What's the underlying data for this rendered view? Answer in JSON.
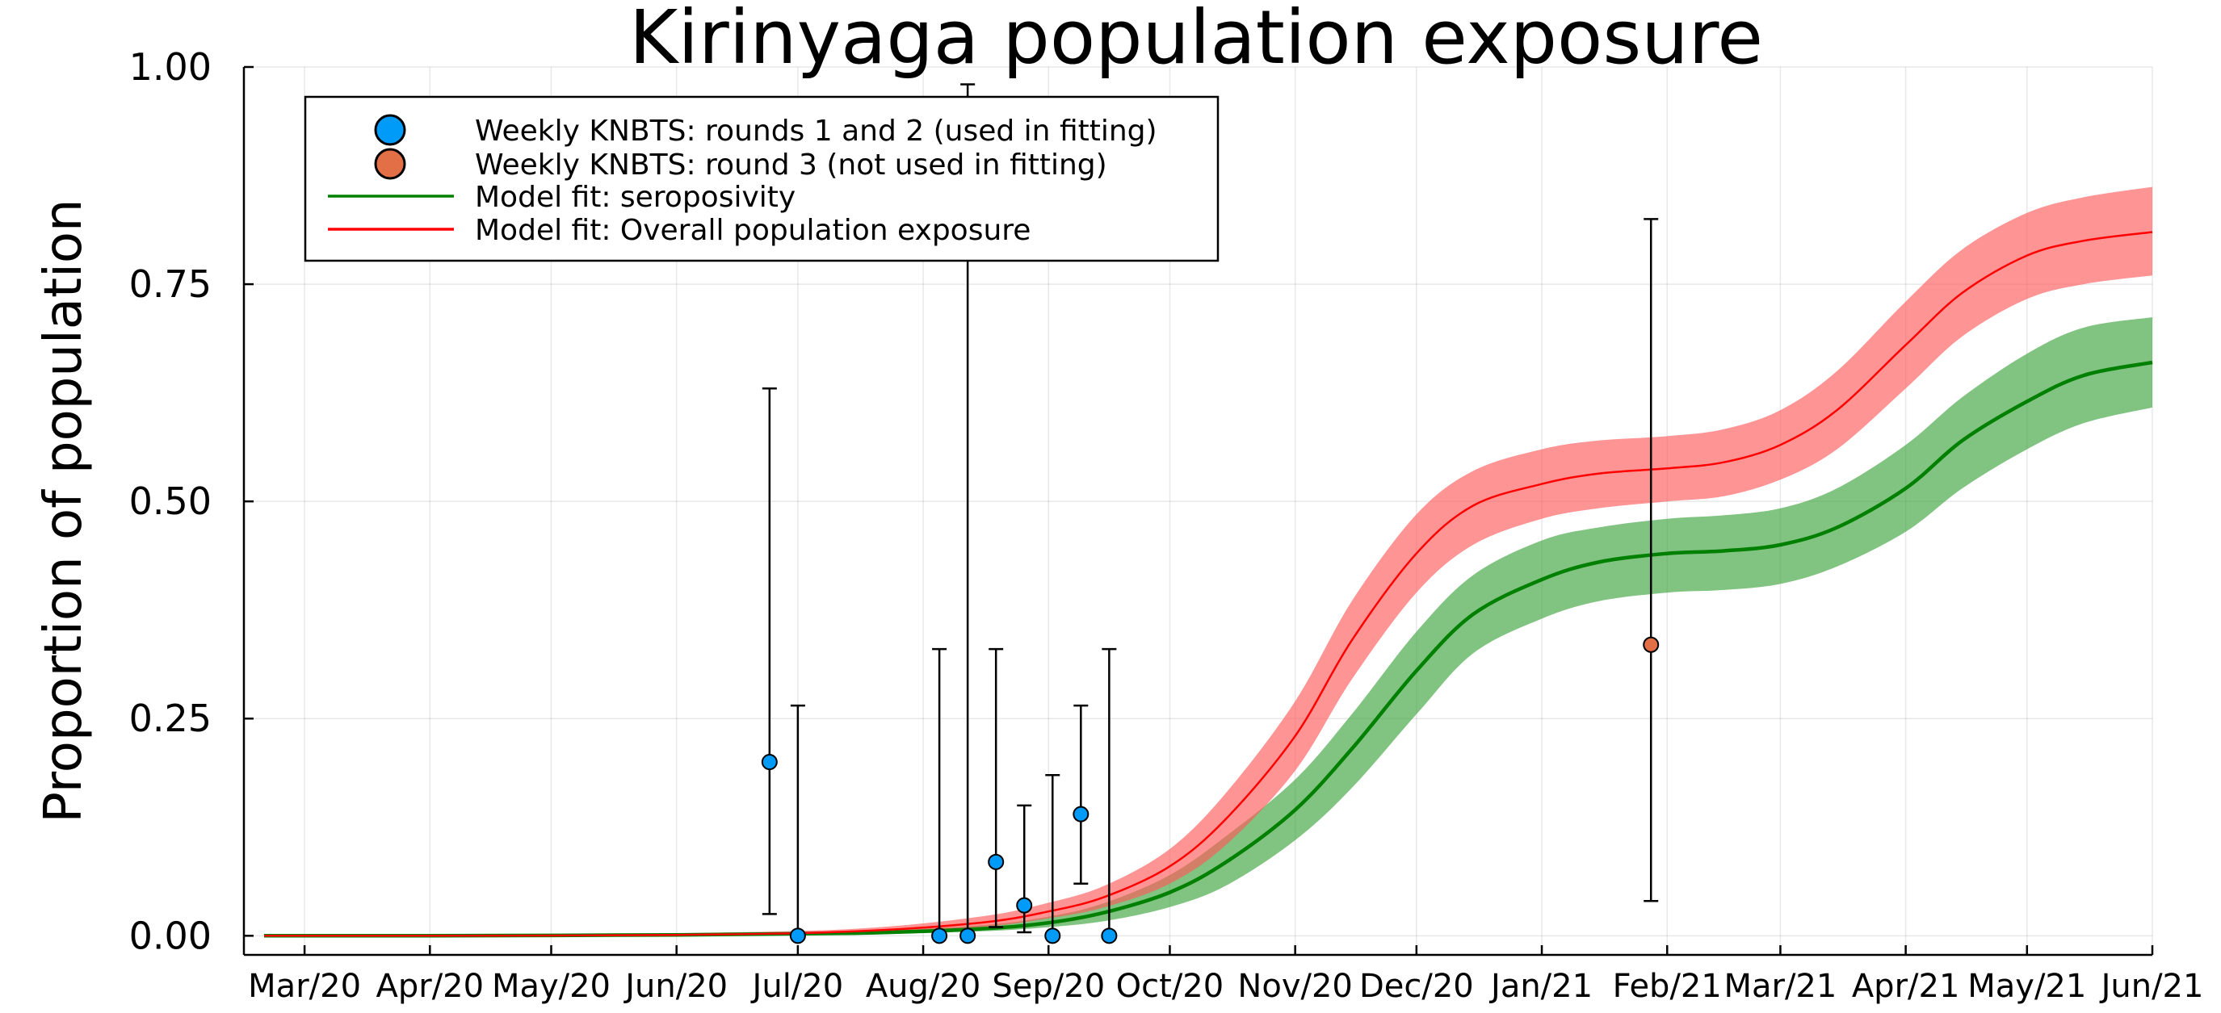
{
  "chart_data": {
    "type": "line",
    "title": "Kirinyaga population exposure",
    "xlabel": "",
    "ylabel": "Proportion of population",
    "x_is_date": true,
    "xlim": [
      "2020-02-15",
      "2021-06-01"
    ],
    "ylim": [
      -0.022,
      1.0
    ],
    "grid": true,
    "legend_position": "top-left",
    "xticks": [
      {
        "date": "2020-03-01",
        "label": "Mar/20"
      },
      {
        "date": "2020-04-01",
        "label": "Apr/20"
      },
      {
        "date": "2020-05-01",
        "label": "May/20"
      },
      {
        "date": "2020-06-01",
        "label": "Jun/20"
      },
      {
        "date": "2020-07-01",
        "label": "Jul/20"
      },
      {
        "date": "2020-08-01",
        "label": "Aug/20"
      },
      {
        "date": "2020-09-01",
        "label": "Sep/20"
      },
      {
        "date": "2020-10-01",
        "label": "Oct/20"
      },
      {
        "date": "2020-11-01",
        "label": "Nov/20"
      },
      {
        "date": "2020-12-01",
        "label": "Dec/20"
      },
      {
        "date": "2021-01-01",
        "label": "Jan/21"
      },
      {
        "date": "2021-02-01",
        "label": "Feb/21"
      },
      {
        "date": "2021-03-01",
        "label": "Mar/21"
      },
      {
        "date": "2021-04-01",
        "label": "Apr/21"
      },
      {
        "date": "2021-05-01",
        "label": "May/21"
      },
      {
        "date": "2021-06-01",
        "label": "Jun/21"
      }
    ],
    "yticks": [
      {
        "value": 0.0,
        "label": "0.00"
      },
      {
        "value": 0.25,
        "label": "0.25"
      },
      {
        "value": 0.5,
        "label": "0.50"
      },
      {
        "value": 0.75,
        "label": "0.75"
      },
      {
        "value": 1.0,
        "label": "1.00"
      }
    ],
    "series": [
      {
        "name": "Weekly KNBTS: rounds 1 and 2 (used in fitting)",
        "kind": "scatter_errorbar",
        "color": "#009af9",
        "points": [
          {
            "x": "2020-06-24",
            "y": 0.2,
            "lo": 0.025,
            "hi": 0.63
          },
          {
            "x": "2020-07-01",
            "y": 0.0,
            "lo": 0.0,
            "hi": 0.265
          },
          {
            "x": "2020-08-05",
            "y": 0.0,
            "lo": 0.0,
            "hi": 0.33
          },
          {
            "x": "2020-08-12",
            "y": 0.0,
            "lo": 0.0,
            "hi": 0.98
          },
          {
            "x": "2020-08-19",
            "y": 0.085,
            "lo": 0.01,
            "hi": 0.33
          },
          {
            "x": "2020-08-26",
            "y": 0.035,
            "lo": 0.004,
            "hi": 0.15
          },
          {
            "x": "2020-09-02",
            "y": 0.0,
            "lo": 0.0,
            "hi": 0.185
          },
          {
            "x": "2020-09-09",
            "y": 0.14,
            "lo": 0.06,
            "hi": 0.265
          },
          {
            "x": "2020-09-16",
            "y": 0.0,
            "lo": 0.0,
            "hi": 0.33
          }
        ]
      },
      {
        "name": "Weekly KNBTS: round 3 (not used in fitting)",
        "kind": "scatter_errorbar",
        "color": "#e26f46",
        "points": [
          {
            "x": "2021-01-28",
            "y": 0.335,
            "lo": 0.04,
            "hi": 0.825
          }
        ]
      },
      {
        "name": "Model fit: seroposivity",
        "kind": "line_band",
        "color": "#008000",
        "band_color": "#3da33d",
        "points": [
          {
            "x": "2020-02-20",
            "y": 0.0,
            "lo": 0.0,
            "hi": 0.0
          },
          {
            "x": "2020-04-01",
            "y": 0.0,
            "lo": 0.0,
            "hi": 0.0
          },
          {
            "x": "2020-06-01",
            "y": 0.001,
            "lo": 0.0,
            "hi": 0.002
          },
          {
            "x": "2020-07-15",
            "y": 0.003,
            "lo": 0.002,
            "hi": 0.005
          },
          {
            "x": "2020-08-15",
            "y": 0.008,
            "lo": 0.005,
            "hi": 0.012
          },
          {
            "x": "2020-09-01",
            "y": 0.015,
            "lo": 0.01,
            "hi": 0.022
          },
          {
            "x": "2020-09-15",
            "y": 0.027,
            "lo": 0.017,
            "hi": 0.038
          },
          {
            "x": "2020-10-01",
            "y": 0.05,
            "lo": 0.033,
            "hi": 0.07
          },
          {
            "x": "2020-10-15",
            "y": 0.085,
            "lo": 0.058,
            "hi": 0.115
          },
          {
            "x": "2020-11-01",
            "y": 0.145,
            "lo": 0.11,
            "hi": 0.18
          },
          {
            "x": "2020-11-15",
            "y": 0.215,
            "lo": 0.17,
            "hi": 0.255
          },
          {
            "x": "2020-12-01",
            "y": 0.305,
            "lo": 0.255,
            "hi": 0.35
          },
          {
            "x": "2020-12-15",
            "y": 0.37,
            "lo": 0.325,
            "hi": 0.415
          },
          {
            "x": "2021-01-01",
            "y": 0.41,
            "lo": 0.365,
            "hi": 0.455
          },
          {
            "x": "2021-01-15",
            "y": 0.43,
            "lo": 0.385,
            "hi": 0.47
          },
          {
            "x": "2021-02-01",
            "y": 0.44,
            "lo": 0.395,
            "hi": 0.48
          },
          {
            "x": "2021-02-15",
            "y": 0.443,
            "lo": 0.398,
            "hi": 0.484
          },
          {
            "x": "2021-03-01",
            "y": 0.45,
            "lo": 0.405,
            "hi": 0.492
          },
          {
            "x": "2021-03-15",
            "y": 0.47,
            "lo": 0.425,
            "hi": 0.515
          },
          {
            "x": "2021-04-01",
            "y": 0.515,
            "lo": 0.465,
            "hi": 0.565
          },
          {
            "x": "2021-04-15",
            "y": 0.57,
            "lo": 0.515,
            "hi": 0.62
          },
          {
            "x": "2021-05-01",
            "y": 0.615,
            "lo": 0.56,
            "hi": 0.67
          },
          {
            "x": "2021-05-15",
            "y": 0.645,
            "lo": 0.59,
            "hi": 0.7
          },
          {
            "x": "2021-06-01",
            "y": 0.66,
            "lo": 0.608,
            "hi": 0.712
          }
        ]
      },
      {
        "name": "Model fit: Overall population exposure",
        "kind": "line_band",
        "color": "#ff0000",
        "band_color": "#ff5a5a",
        "points": [
          {
            "x": "2020-02-20",
            "y": 0.0,
            "lo": 0.0,
            "hi": 0.0
          },
          {
            "x": "2020-04-01",
            "y": 0.0,
            "lo": 0.0,
            "hi": 0.001
          },
          {
            "x": "2020-06-01",
            "y": 0.001,
            "lo": 0.001,
            "hi": 0.003
          },
          {
            "x": "2020-07-15",
            "y": 0.005,
            "lo": 0.003,
            "hi": 0.008
          },
          {
            "x": "2020-08-15",
            "y": 0.015,
            "lo": 0.01,
            "hi": 0.022
          },
          {
            "x": "2020-09-01",
            "y": 0.028,
            "lo": 0.02,
            "hi": 0.038
          },
          {
            "x": "2020-09-15",
            "y": 0.045,
            "lo": 0.033,
            "hi": 0.058
          },
          {
            "x": "2020-10-01",
            "y": 0.08,
            "lo": 0.06,
            "hi": 0.1
          },
          {
            "x": "2020-10-15",
            "y": 0.135,
            "lo": 0.105,
            "hi": 0.165
          },
          {
            "x": "2020-11-01",
            "y": 0.23,
            "lo": 0.19,
            "hi": 0.27
          },
          {
            "x": "2020-11-15",
            "y": 0.34,
            "lo": 0.295,
            "hi": 0.385
          },
          {
            "x": "2020-12-01",
            "y": 0.44,
            "lo": 0.395,
            "hi": 0.485
          },
          {
            "x": "2020-12-15",
            "y": 0.495,
            "lo": 0.45,
            "hi": 0.535
          },
          {
            "x": "2021-01-01",
            "y": 0.52,
            "lo": 0.48,
            "hi": 0.56
          },
          {
            "x": "2021-01-15",
            "y": 0.532,
            "lo": 0.492,
            "hi": 0.57
          },
          {
            "x": "2021-02-01",
            "y": 0.538,
            "lo": 0.5,
            "hi": 0.575
          },
          {
            "x": "2021-02-15",
            "y": 0.545,
            "lo": 0.506,
            "hi": 0.583
          },
          {
            "x": "2021-03-01",
            "y": 0.565,
            "lo": 0.525,
            "hi": 0.605
          },
          {
            "x": "2021-03-15",
            "y": 0.605,
            "lo": 0.56,
            "hi": 0.65
          },
          {
            "x": "2021-04-01",
            "y": 0.68,
            "lo": 0.63,
            "hi": 0.73
          },
          {
            "x": "2021-04-15",
            "y": 0.74,
            "lo": 0.69,
            "hi": 0.79
          },
          {
            "x": "2021-05-01",
            "y": 0.783,
            "lo": 0.733,
            "hi": 0.832
          },
          {
            "x": "2021-05-15",
            "y": 0.8,
            "lo": 0.75,
            "hi": 0.85
          },
          {
            "x": "2021-06-01",
            "y": 0.81,
            "lo": 0.76,
            "hi": 0.862
          }
        ]
      }
    ]
  }
}
